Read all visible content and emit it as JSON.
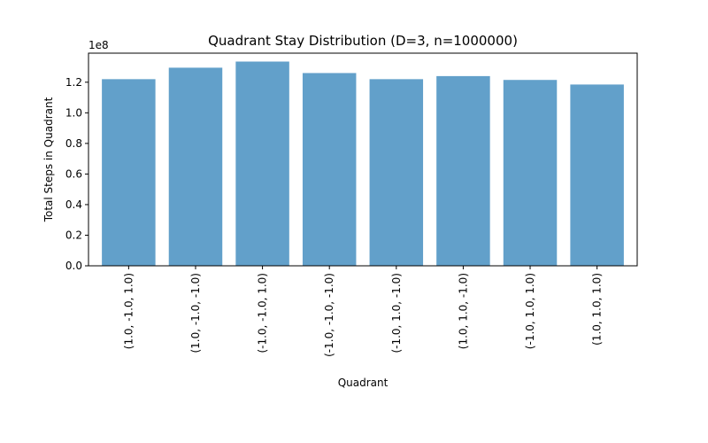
{
  "chart_data": {
    "type": "bar",
    "title": "Quadrant Stay Distribution (D=3, n=1000000)",
    "xlabel": "Quadrant",
    "ylabel": "Total Steps in Quadrant",
    "scale_label": "1e8",
    "categories": [
      "(1.0, -1.0, 1.0)",
      "(1.0, -1.0, -1.0)",
      "(-1.0, -1.0, 1.0)",
      "(-1.0, -1.0, -1.0)",
      "(-1.0, 1.0, -1.0)",
      "(1.0, 1.0, -1.0)",
      "(-1.0, 1.0, 1.0)",
      "(1.0, 1.0, 1.0)"
    ],
    "values": [
      1.22,
      1.295,
      1.335,
      1.26,
      1.22,
      1.24,
      1.215,
      1.185
    ],
    "yticks": [
      "0.0",
      "0.2",
      "0.4",
      "0.6",
      "0.8",
      "1.0",
      "1.2"
    ],
    "ylim": [
      0,
      1.39
    ],
    "bar_color": "#1f77b4",
    "bar_opacity": 0.7,
    "grid": false
  }
}
